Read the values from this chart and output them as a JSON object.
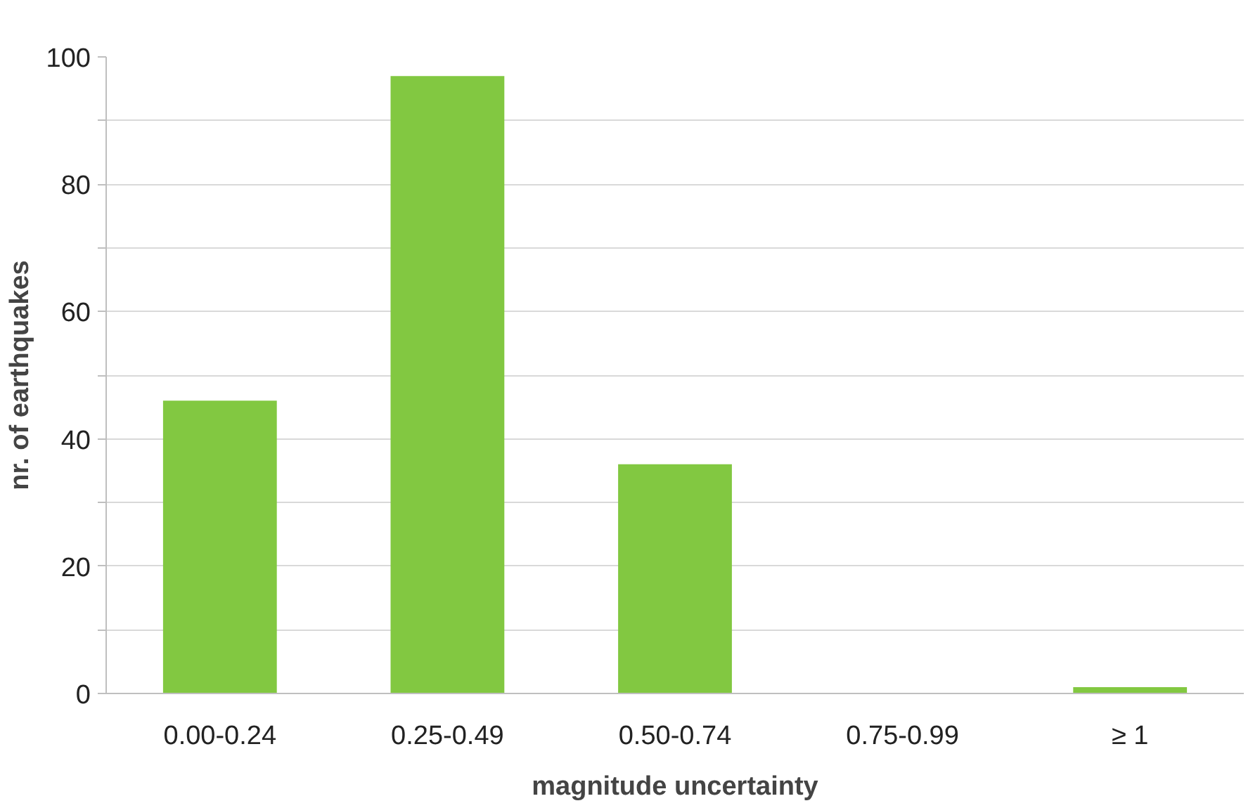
{
  "chart_data": {
    "type": "bar",
    "xlabel": "magnitude uncertainty",
    "ylabel": "nr. of earthquakes",
    "categories": [
      "0.00-0.24",
      "0.25-0.49",
      "0.50-0.74",
      "0.75-0.99",
      "≥ 1"
    ],
    "values": [
      46,
      97,
      36,
      0,
      1
    ],
    "color": "#82c841",
    "ylim": [
      0,
      100
    ],
    "yticks": [
      0,
      {
        "value": 10,
        "label": null
      },
      20,
      {
        "value": 30,
        "label": null
      },
      40,
      {
        "value": 50,
        "label": null
      },
      60,
      {
        "value": 70,
        "label": null
      },
      80,
      {
        "value": 90,
        "label": null
      },
      100
    ],
    "grid": "y"
  }
}
